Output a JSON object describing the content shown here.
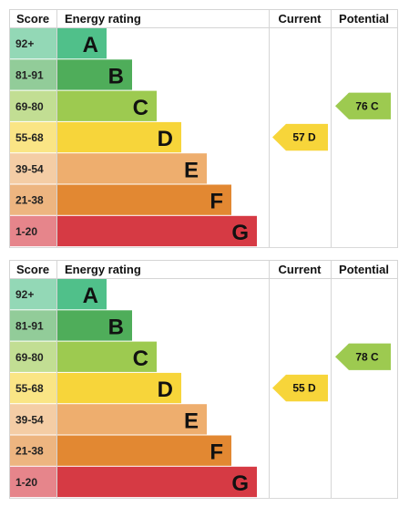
{
  "chart_data": [
    {
      "type": "table",
      "headers": {
        "score": "Score",
        "rating": "Energy rating",
        "current": "Current",
        "potential": "Potential"
      },
      "bands": [
        {
          "score": "92+",
          "letter": "A",
          "color": "#50c08a"
        },
        {
          "score": "81-91",
          "letter": "B",
          "color": "#4fad5a"
        },
        {
          "score": "69-80",
          "letter": "C",
          "color": "#9dca50"
        },
        {
          "score": "55-68",
          "letter": "D",
          "color": "#f7d53a"
        },
        {
          "score": "39-54",
          "letter": "E",
          "color": "#eeae6e"
        },
        {
          "score": "21-38",
          "letter": "F",
          "color": "#e28832"
        },
        {
          "score": "1-20",
          "letter": "G",
          "color": "#d63a44"
        }
      ],
      "current": {
        "value": 57,
        "band": "D",
        "label": "57 D"
      },
      "potential": {
        "value": 76,
        "band": "C",
        "label": "76 C"
      }
    },
    {
      "type": "table",
      "headers": {
        "score": "Score",
        "rating": "Energy rating",
        "current": "Current",
        "potential": "Potential"
      },
      "bands": [
        {
          "score": "92+",
          "letter": "A",
          "color": "#50c08a"
        },
        {
          "score": "81-91",
          "letter": "B",
          "color": "#4fad5a"
        },
        {
          "score": "69-80",
          "letter": "C",
          "color": "#9dca50"
        },
        {
          "score": "55-68",
          "letter": "D",
          "color": "#f7d53a"
        },
        {
          "score": "39-54",
          "letter": "E",
          "color": "#eeae6e"
        },
        {
          "score": "21-38",
          "letter": "F",
          "color": "#e28832"
        },
        {
          "score": "1-20",
          "letter": "G",
          "color": "#d63a44"
        }
      ],
      "current": {
        "value": 55,
        "band": "D",
        "label": "55 D"
      },
      "potential": {
        "value": 78,
        "band": "C",
        "label": "78 C"
      }
    }
  ]
}
